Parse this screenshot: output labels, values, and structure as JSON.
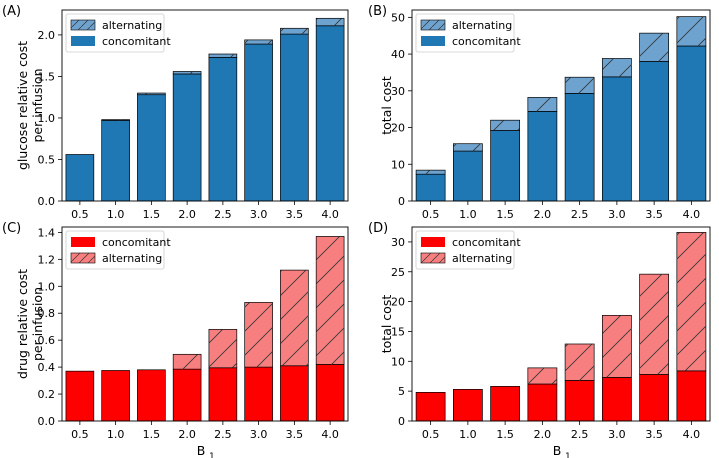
{
  "chart_data": [
    {
      "id": "A",
      "type": "bar",
      "stacked": true,
      "panel_label": "(A)",
      "categories": [
        "0.5",
        "1.0",
        "1.5",
        "2.0",
        "2.5",
        "3.0",
        "3.5",
        "4.0"
      ],
      "series": [
        {
          "name": "concomitant",
          "color": "#1f77b4",
          "hatch": false,
          "values": [
            0.56,
            0.97,
            1.28,
            1.53,
            1.73,
            1.89,
            2.01,
            2.11
          ]
        },
        {
          "name": "alternating",
          "color": "#6fa3cf",
          "hatch": true,
          "values": [
            0.0,
            0.01,
            0.02,
            0.03,
            0.04,
            0.05,
            0.07,
            0.09
          ]
        }
      ],
      "legend_order": [
        "alternating",
        "concomitant"
      ],
      "legend_position": "top-left",
      "ylabel_lines": [
        "glucose relative cost",
        "per infusion"
      ],
      "xlabel": "",
      "ylim": [
        0,
        2.3
      ],
      "yticks": [
        "0.0",
        "0.5",
        "1.0",
        "1.5",
        "2.0"
      ]
    },
    {
      "id": "B",
      "type": "bar",
      "stacked": true,
      "panel_label": "(B)",
      "categories": [
        "0.5",
        "1.0",
        "1.5",
        "2.0",
        "2.5",
        "3.0",
        "3.5",
        "4.0"
      ],
      "series": [
        {
          "name": "concomitant",
          "color": "#1f77b4",
          "hatch": false,
          "values": [
            7.3,
            13.6,
            19.2,
            24.4,
            29.3,
            33.8,
            38.0,
            42.2
          ]
        },
        {
          "name": "alternating",
          "color": "#6fa3cf",
          "hatch": true,
          "values": [
            1.1,
            2.0,
            2.8,
            3.8,
            4.4,
            5.0,
            7.7,
            8.0
          ]
        }
      ],
      "legend_order": [
        "alternating",
        "concomitant"
      ],
      "legend_position": "top-left",
      "ylabel_lines": [
        "total cost"
      ],
      "xlabel": "",
      "ylim": [
        0,
        52
      ],
      "yticks": [
        "0",
        "10",
        "20",
        "30",
        "40",
        "50"
      ]
    },
    {
      "id": "C",
      "type": "bar",
      "stacked": true,
      "panel_label": "(C)",
      "categories": [
        "0.5",
        "1.0",
        "1.5",
        "2.0",
        "2.5",
        "3.0",
        "3.5",
        "4.0"
      ],
      "series": [
        {
          "name": "concomitant",
          "color": "#ff0000",
          "hatch": false,
          "values": [
            0.37,
            0.375,
            0.38,
            0.385,
            0.395,
            0.4,
            0.41,
            0.42
          ]
        },
        {
          "name": "alternating",
          "color": "#f87f7f",
          "hatch": true,
          "values": [
            0.0,
            0.0,
            0.0,
            0.11,
            0.285,
            0.48,
            0.71,
            0.95
          ]
        }
      ],
      "legend_order": [
        "concomitant",
        "alternating"
      ],
      "legend_position": "top-left",
      "ylabel_lines": [
        "drug relative cost",
        "per infusion"
      ],
      "xlabel": "B",
      "xlabel_sub": "1",
      "ylim": [
        0,
        1.44
      ],
      "yticks": [
        "0.0",
        "0.2",
        "0.4",
        "0.6",
        "0.8",
        "1.0",
        "1.2",
        "1.4"
      ]
    },
    {
      "id": "D",
      "type": "bar",
      "stacked": true,
      "panel_label": "(D)",
      "categories": [
        "0.5",
        "1.0",
        "1.5",
        "2.0",
        "2.5",
        "3.0",
        "3.5",
        "4.0"
      ],
      "series": [
        {
          "name": "concomitant",
          "color": "#ff0000",
          "hatch": false,
          "values": [
            4.8,
            5.3,
            5.8,
            6.2,
            6.8,
            7.3,
            7.8,
            8.4
          ]
        },
        {
          "name": "alternating",
          "color": "#f87f7f",
          "hatch": true,
          "values": [
            0.0,
            0.0,
            0.0,
            2.7,
            6.1,
            10.4,
            16.8,
            23.2
          ]
        }
      ],
      "legend_order": [
        "concomitant",
        "alternating"
      ],
      "legend_position": "top-left",
      "ylabel_lines": [
        "total cost"
      ],
      "xlabel": "B",
      "xlabel_sub": "1",
      "ylim": [
        0,
        32.5
      ],
      "yticks": [
        "0",
        "5",
        "10",
        "15",
        "20",
        "25",
        "30"
      ]
    }
  ]
}
